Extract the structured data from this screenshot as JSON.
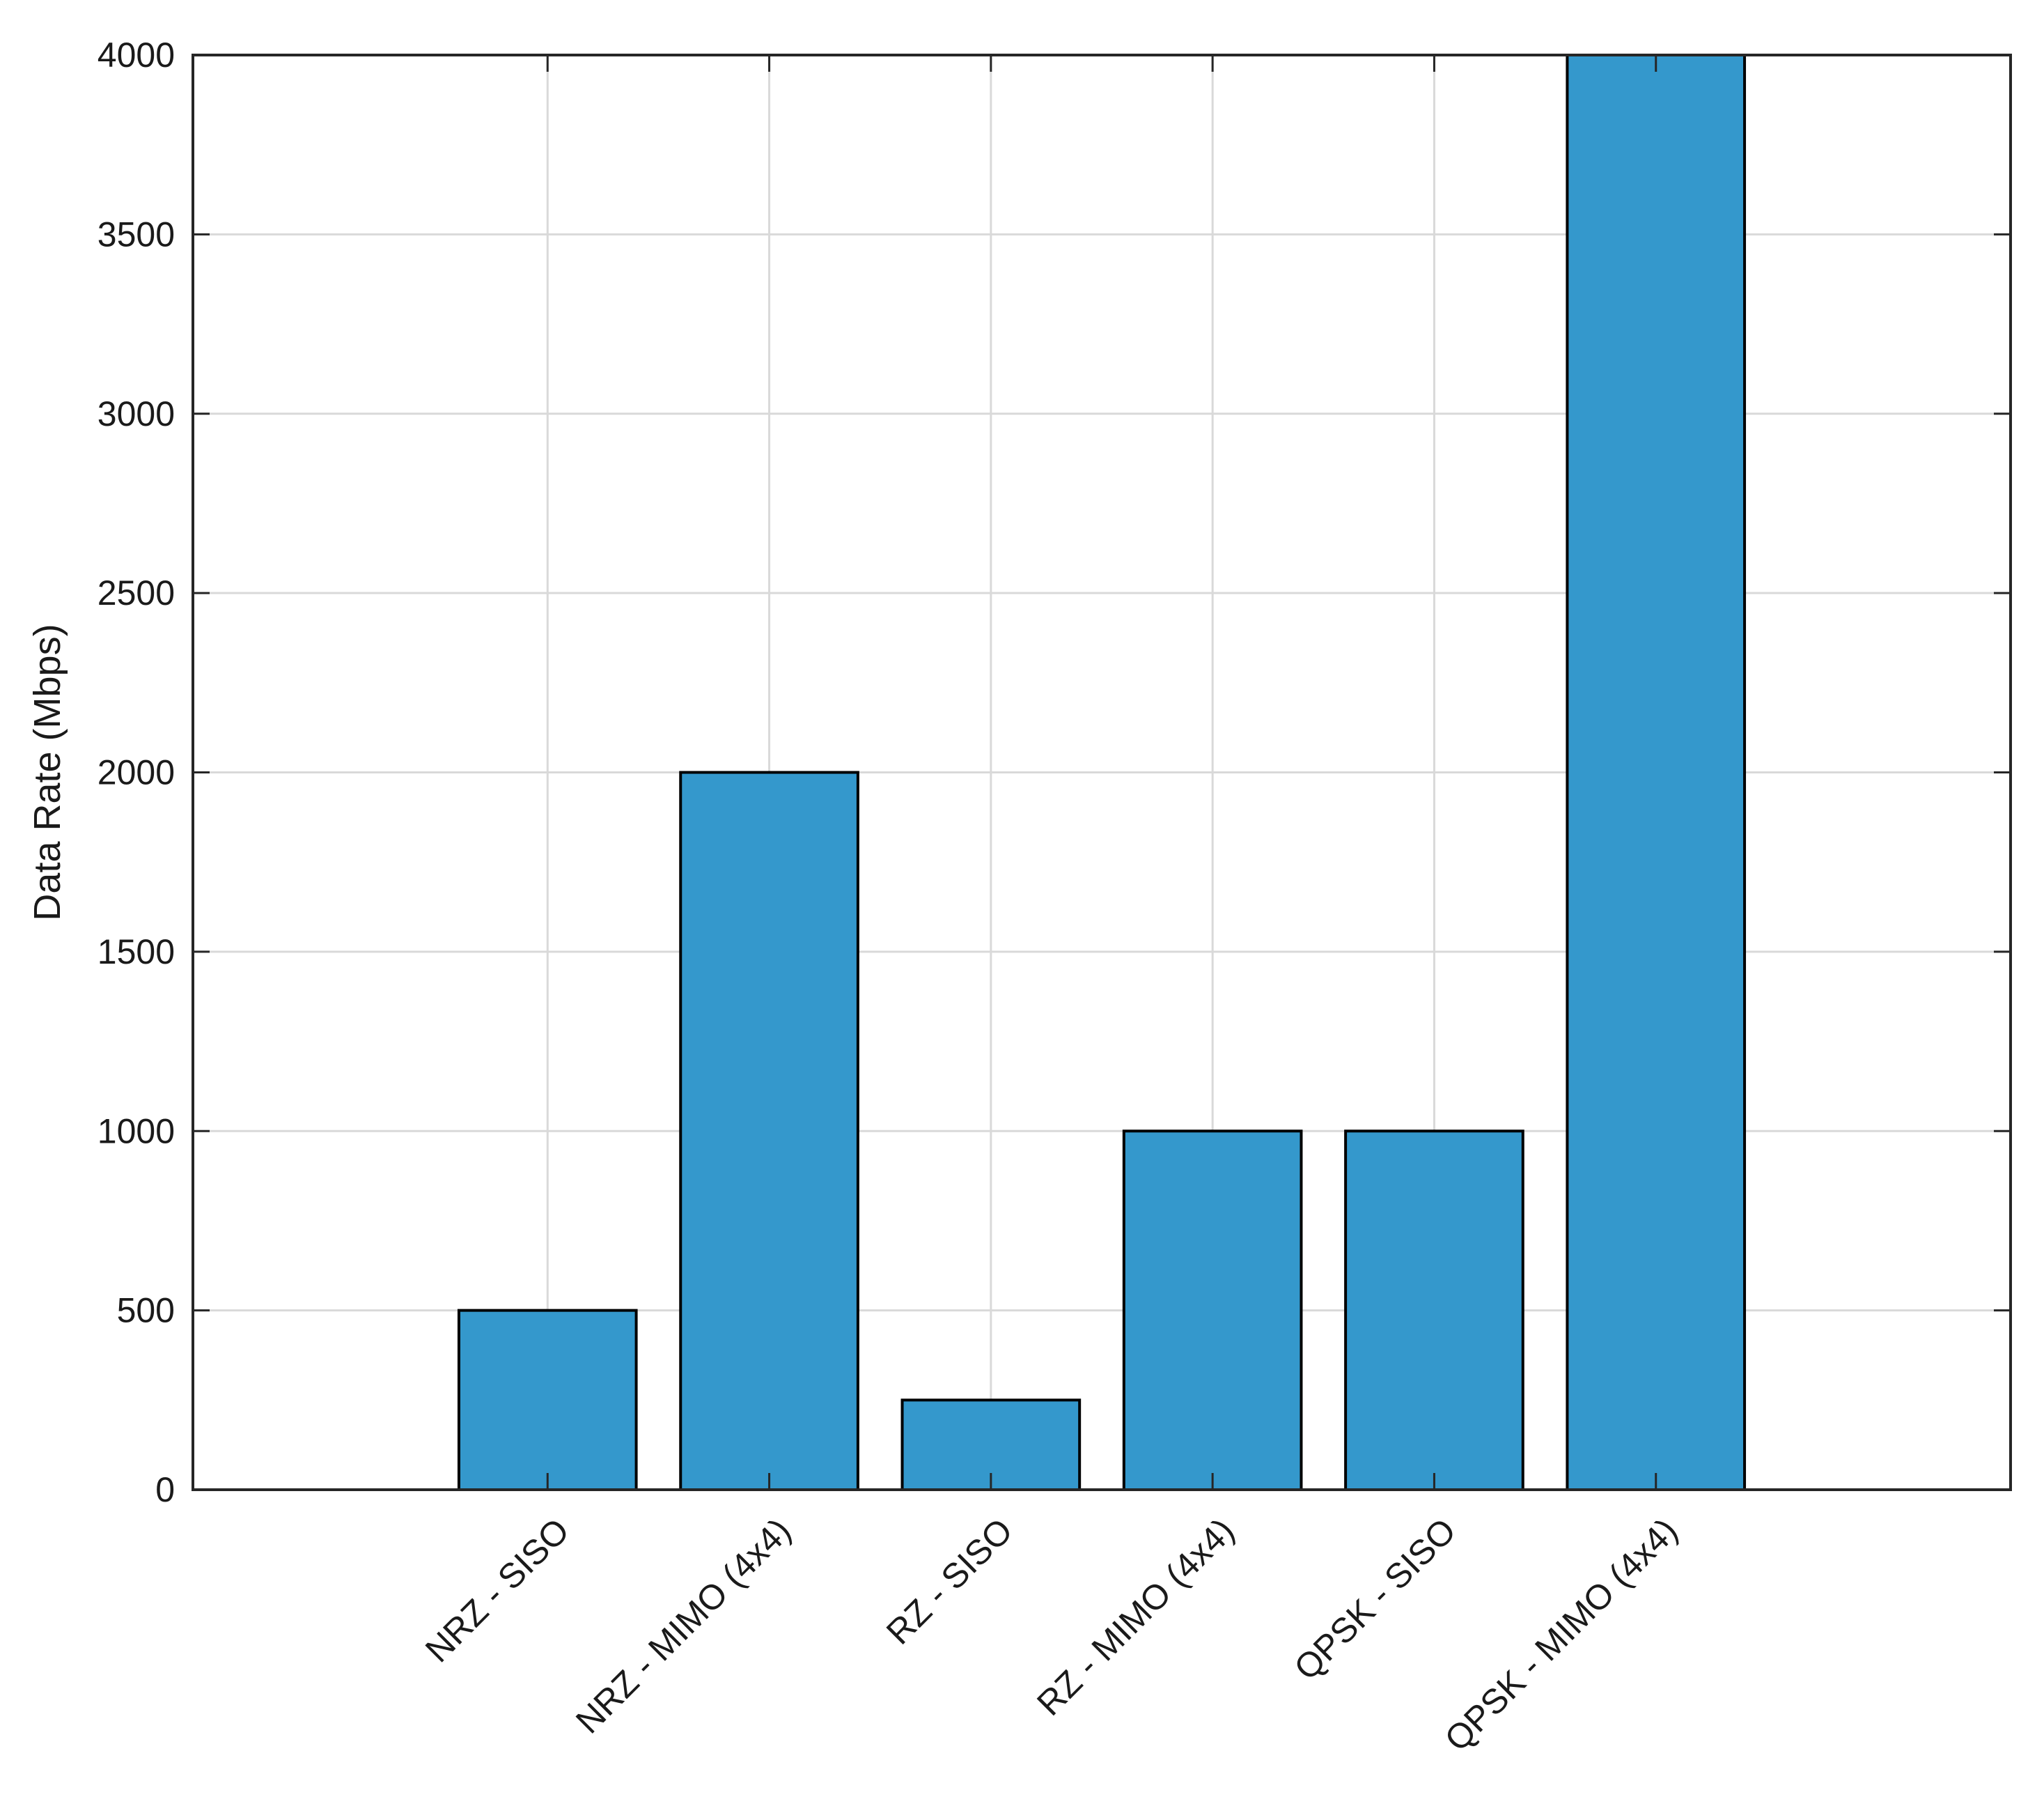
{
  "chart_data": {
    "type": "bar",
    "title": "",
    "xlabel": "",
    "ylabel": "Data Rate (Mbps)",
    "categories": [
      "NRZ - SISO",
      "NRZ - MIMO (4x4)",
      "RZ - SISO",
      "RZ - MIMO (4x4)",
      "QPSK - SISO",
      "QPSK - MIMO (4x4)"
    ],
    "values": [
      500,
      2000,
      250,
      1000,
      1000,
      4000
    ],
    "ylim": [
      0,
      4000
    ],
    "yticks": [
      0,
      500,
      1000,
      1500,
      2000,
      2500,
      3000,
      3500,
      4000
    ],
    "grid": true,
    "legend": "none",
    "bar_color": "#3498cc",
    "bar_edge_color": "#000000"
  }
}
